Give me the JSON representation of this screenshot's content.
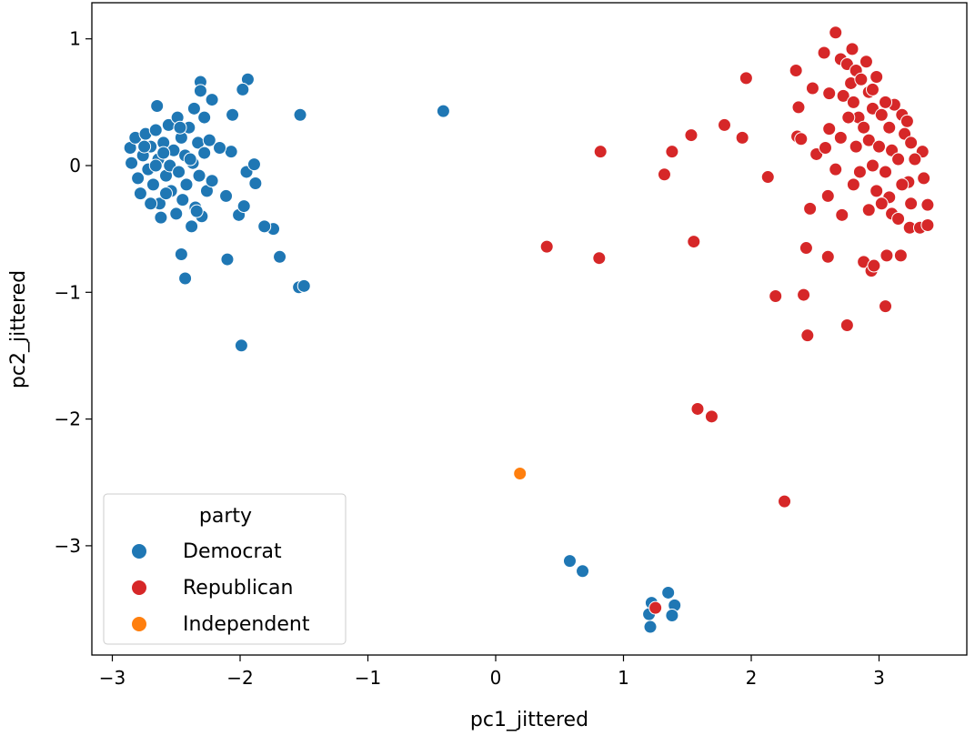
{
  "chart_data": {
    "type": "scatter",
    "xlabel": "pc1_jittered",
    "ylabel": "pc2_jittered",
    "xlim": [
      -3.15,
      3.7
    ],
    "ylim": [
      -3.86,
      1.3
    ],
    "xticks": [
      -3,
      -2,
      -1,
      0,
      1,
      2,
      3
    ],
    "yticks": [
      1,
      0,
      -1,
      -2,
      -3
    ],
    "grid": false,
    "legend": {
      "title": "party",
      "placement": "bottom-left"
    },
    "series": [
      {
        "name": "Democrat",
        "color": "#1f77b4",
        "points": [
          [
            -0.41,
            0.43
          ],
          [
            -1.53,
            0.4
          ],
          [
            -1.94,
            0.68
          ],
          [
            -1.98,
            0.6
          ],
          [
            -2.06,
            0.4
          ],
          [
            -1.99,
            -1.42
          ],
          [
            -1.54,
            -0.96
          ],
          [
            -1.5,
            -0.95
          ],
          [
            -1.69,
            -0.72
          ],
          [
            -2.1,
            -0.74
          ],
          [
            -2.43,
            -0.89
          ],
          [
            -2.46,
            -0.7
          ],
          [
            -1.74,
            -0.5
          ],
          [
            -1.81,
            -0.48
          ],
          [
            -2.01,
            -0.39
          ],
          [
            -1.97,
            -0.32
          ],
          [
            -2.11,
            -0.24
          ],
          [
            -1.88,
            -0.14
          ],
          [
            -1.95,
            -0.05
          ],
          [
            -1.89,
            0.01
          ],
          [
            -2.07,
            0.11
          ],
          [
            -2.16,
            0.14
          ],
          [
            -2.31,
            0.66
          ],
          [
            -2.31,
            0.59
          ],
          [
            -2.22,
            0.52
          ],
          [
            -2.28,
            0.38
          ],
          [
            -2.36,
            0.45
          ],
          [
            -2.65,
            0.47
          ],
          [
            -2.86,
            0.14
          ],
          [
            -2.85,
            0.02
          ],
          [
            -2.82,
            0.22
          ],
          [
            -2.8,
            -0.1
          ],
          [
            -2.78,
            -0.22
          ],
          [
            -2.76,
            0.08
          ],
          [
            -2.74,
            0.25
          ],
          [
            -2.72,
            -0.03
          ],
          [
            -2.7,
            0.15
          ],
          [
            -2.68,
            -0.15
          ],
          [
            -2.66,
            0.28
          ],
          [
            -2.64,
            0.05
          ],
          [
            -2.63,
            -0.3
          ],
          [
            -2.62,
            -0.41
          ],
          [
            -2.6,
            0.18
          ],
          [
            -2.58,
            -0.08
          ],
          [
            -2.56,
            0.32
          ],
          [
            -2.55,
            0.0
          ],
          [
            -2.54,
            -0.2
          ],
          [
            -2.52,
            0.12
          ],
          [
            -2.5,
            -0.38
          ],
          [
            -2.49,
            0.38
          ],
          [
            -2.48,
            -0.05
          ],
          [
            -2.46,
            0.22
          ],
          [
            -2.45,
            -0.27
          ],
          [
            -2.43,
            0.08
          ],
          [
            -2.42,
            -0.15
          ],
          [
            -2.4,
            0.3
          ],
          [
            -2.38,
            -0.48
          ],
          [
            -2.37,
            0.02
          ],
          [
            -2.35,
            -0.33
          ],
          [
            -2.33,
            0.18
          ],
          [
            -2.32,
            -0.08
          ],
          [
            -2.3,
            -0.4
          ],
          [
            -2.28,
            0.1
          ],
          [
            -2.26,
            -0.2
          ],
          [
            -2.24,
            0.2
          ],
          [
            -2.22,
            -0.12
          ],
          [
            -2.34,
            -0.36
          ],
          [
            -2.58,
            -0.22
          ],
          [
            -2.7,
            -0.3
          ],
          [
            -2.6,
            0.1
          ],
          [
            -2.47,
            0.3
          ],
          [
            -2.39,
            0.05
          ],
          [
            -2.75,
            0.15
          ],
          [
            -2.66,
            0.0
          ],
          [
            1.22,
            -3.45
          ],
          [
            1.2,
            -3.54
          ],
          [
            1.21,
            -3.64
          ],
          [
            1.35,
            -3.37
          ],
          [
            1.4,
            -3.47
          ],
          [
            1.38,
            -3.55
          ],
          [
            0.58,
            -3.12
          ],
          [
            0.68,
            -3.2
          ]
        ]
      },
      {
        "name": "Republican",
        "color": "#d62728",
        "points": [
          [
            0.82,
            0.11
          ],
          [
            0.4,
            -0.64
          ],
          [
            0.81,
            -0.73
          ],
          [
            1.38,
            0.11
          ],
          [
            1.32,
            -0.07
          ],
          [
            1.53,
            0.24
          ],
          [
            1.55,
            -0.6
          ],
          [
            1.79,
            0.32
          ],
          [
            1.93,
            0.22
          ],
          [
            1.96,
            0.69
          ],
          [
            2.13,
            -0.09
          ],
          [
            2.19,
            -1.03
          ],
          [
            1.58,
            -1.92
          ],
          [
            1.69,
            -1.98
          ],
          [
            2.26,
            -2.65
          ],
          [
            2.41,
            -1.02
          ],
          [
            2.44,
            -1.34
          ],
          [
            2.43,
            -0.65
          ],
          [
            2.75,
            -1.26
          ],
          [
            3.05,
            -1.11
          ],
          [
            2.6,
            -0.72
          ],
          [
            2.88,
            -0.76
          ],
          [
            2.94,
            -0.83
          ],
          [
            2.96,
            -0.79
          ],
          [
            3.06,
            -0.71
          ],
          [
            3.17,
            -0.71
          ],
          [
            2.71,
            -0.39
          ],
          [
            2.6,
            -0.24
          ],
          [
            2.46,
            -0.34
          ],
          [
            2.66,
            -0.03
          ],
          [
            2.51,
            0.09
          ],
          [
            2.36,
            0.23
          ],
          [
            2.39,
            0.21
          ],
          [
            2.58,
            0.14
          ],
          [
            2.37,
            0.46
          ],
          [
            2.35,
            0.75
          ],
          [
            2.48,
            0.61
          ],
          [
            2.57,
            0.89
          ],
          [
            2.66,
            1.05
          ],
          [
            2.79,
            0.92
          ],
          [
            2.61,
            0.57
          ],
          [
            2.61,
            0.29
          ],
          [
            3.24,
            -0.49
          ],
          [
            3.32,
            -0.49
          ],
          [
            3.38,
            -0.47
          ],
          [
            3.38,
            -0.31
          ],
          [
            3.34,
            0.11
          ],
          [
            3.23,
            -0.13
          ],
          [
            1.25,
            -3.49
          ],
          [
            2.7,
            0.84
          ],
          [
            2.75,
            0.8
          ],
          [
            2.82,
            0.75
          ],
          [
            2.9,
            0.82
          ],
          [
            2.78,
            0.65
          ],
          [
            2.86,
            0.68
          ],
          [
            2.72,
            0.55
          ],
          [
            2.8,
            0.5
          ],
          [
            2.92,
            0.58
          ],
          [
            2.98,
            0.7
          ],
          [
            2.84,
            0.38
          ],
          [
            2.95,
            0.45
          ],
          [
            3.02,
            0.4
          ],
          [
            2.76,
            0.38
          ],
          [
            2.88,
            0.3
          ],
          [
            3.08,
            0.3
          ],
          [
            3.12,
            0.48
          ],
          [
            3.18,
            0.4
          ],
          [
            3.2,
            0.25
          ],
          [
            2.92,
            0.2
          ],
          [
            3.0,
            0.15
          ],
          [
            3.1,
            0.12
          ],
          [
            2.82,
            0.15
          ],
          [
            2.7,
            0.22
          ],
          [
            3.15,
            0.05
          ],
          [
            3.25,
            0.18
          ],
          [
            3.28,
            0.05
          ],
          [
            2.95,
            0.0
          ],
          [
            3.05,
            -0.05
          ],
          [
            2.85,
            -0.05
          ],
          [
            3.18,
            -0.15
          ],
          [
            2.98,
            -0.2
          ],
          [
            3.08,
            -0.25
          ],
          [
            2.92,
            -0.35
          ],
          [
            3.1,
            -0.38
          ],
          [
            3.02,
            -0.3
          ],
          [
            3.15,
            -0.42
          ],
          [
            3.25,
            -0.3
          ],
          [
            2.8,
            -0.15
          ],
          [
            3.35,
            -0.1
          ],
          [
            3.22,
            0.35
          ],
          [
            2.95,
            0.6
          ],
          [
            3.05,
            0.5
          ]
        ]
      },
      {
        "name": "Independent",
        "color": "#ff7f0e",
        "points": [
          [
            0.19,
            -2.43
          ]
        ]
      }
    ]
  }
}
